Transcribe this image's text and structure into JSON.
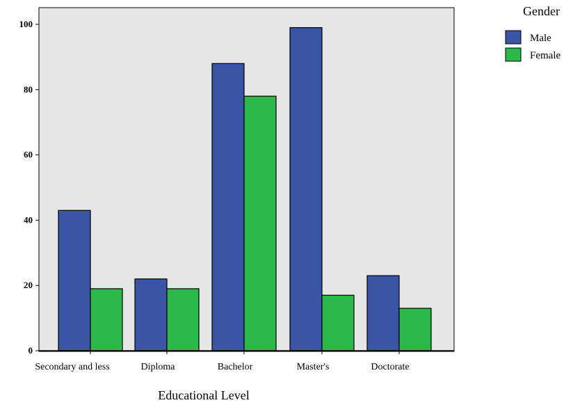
{
  "chart_data": {
    "type": "bar",
    "title": "",
    "xlabel": "Educational Level",
    "ylabel": "",
    "categories": [
      "Secondary and less",
      "Diploma",
      "Bachelor",
      "Master's",
      "Doctorate"
    ],
    "series": [
      {
        "name": "Male",
        "values": [
          43,
          22,
          88,
          99,
          23
        ],
        "color": "#3a55a4"
      },
      {
        "name": "Female",
        "values": [
          19,
          19,
          78,
          17,
          13
        ],
        "color": "#2db84b"
      }
    ],
    "ylim": [
      0,
      100
    ],
    "yticks": [
      "0",
      "20",
      "40",
      "60",
      "80",
      "100"
    ],
    "grid": false,
    "legend": {
      "title": "Gender",
      "placement": "top-right"
    },
    "plot_background": "#e6e6e6"
  }
}
